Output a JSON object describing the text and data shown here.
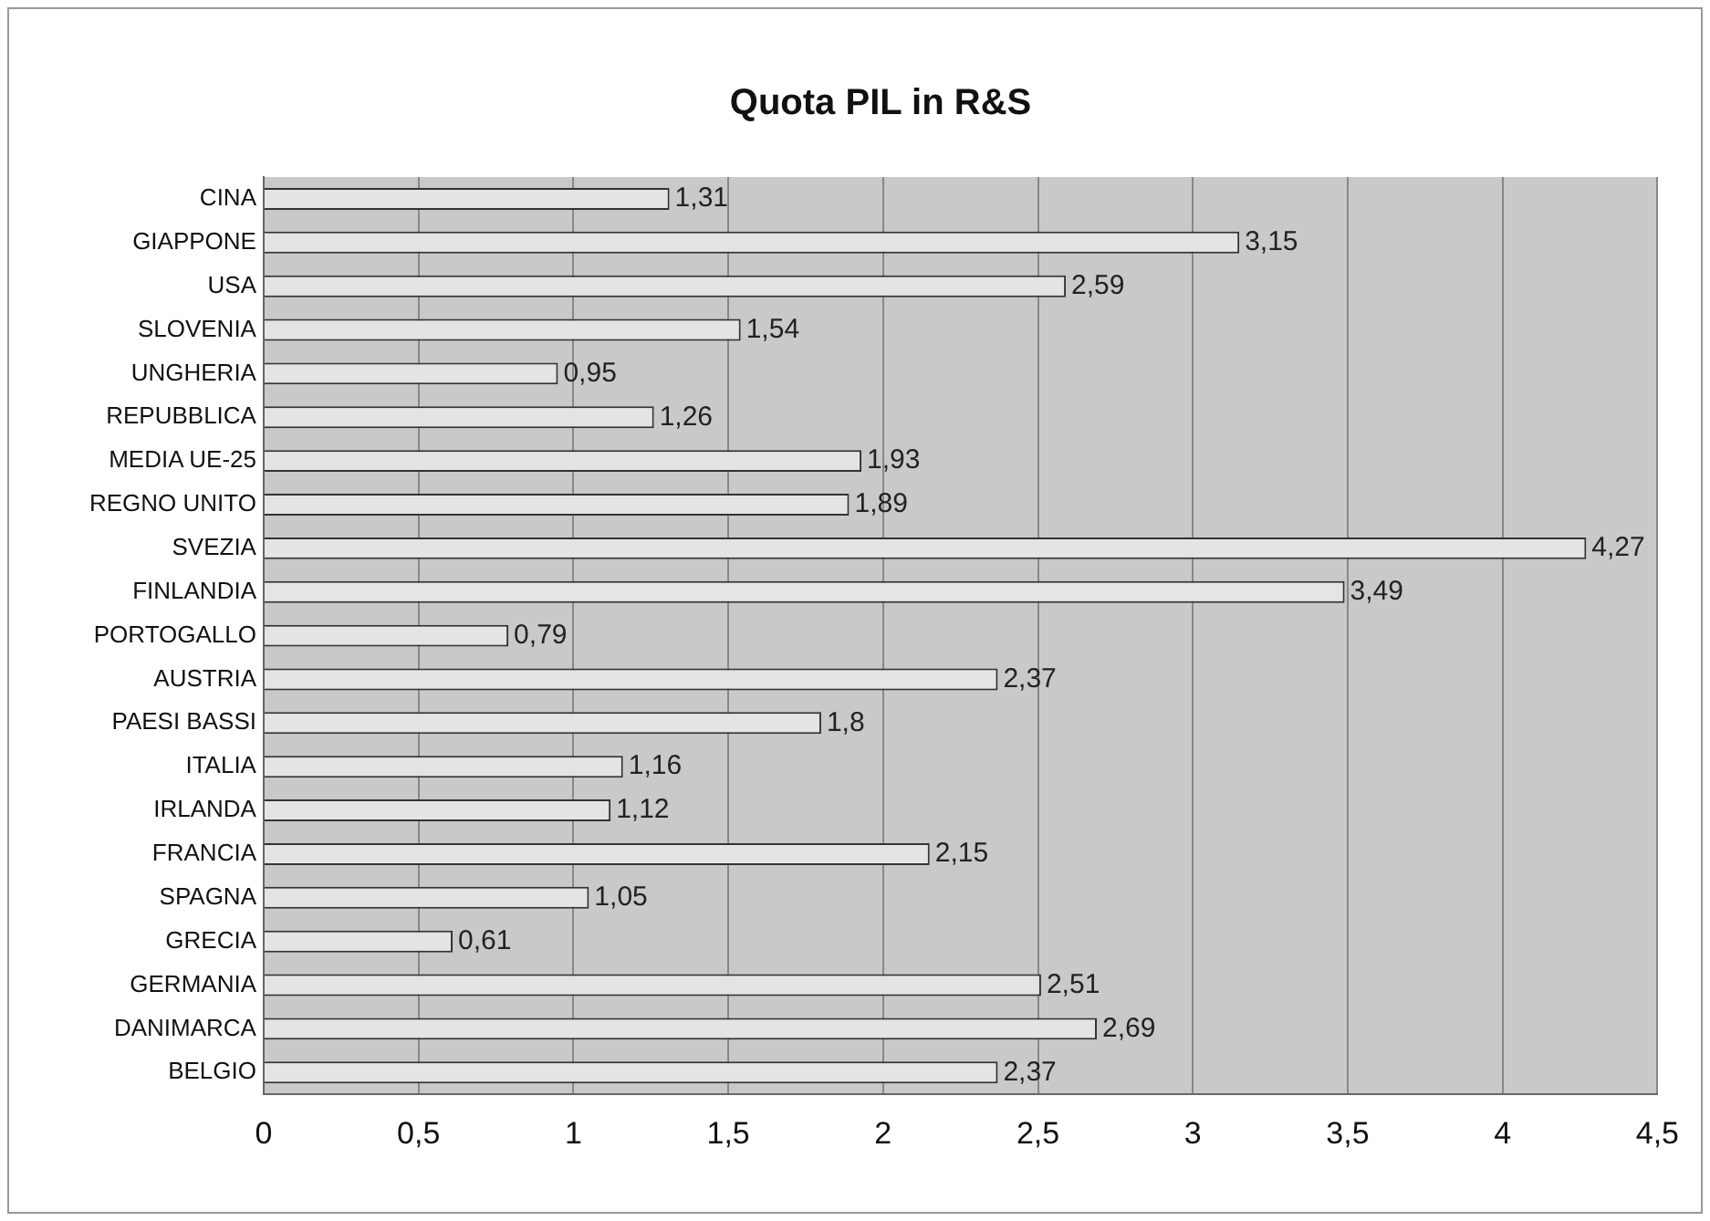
{
  "chart_data": {
    "type": "bar",
    "orientation": "horizontal",
    "title": "Quota PIL in R&S",
    "categories": [
      "CINA",
      "GIAPPONE",
      "USA",
      "SLOVENIA",
      "UNGHERIA",
      "REPUBBLICA",
      "MEDIA UE-25",
      "REGNO UNITO",
      "SVEZIA",
      "FINLANDIA",
      "PORTOGALLO",
      "AUSTRIA",
      "PAESI BASSI",
      "ITALIA",
      "IRLANDA",
      "FRANCIA",
      "SPAGNA",
      "GRECIA",
      "GERMANIA",
      "DANIMARCA",
      "BELGIO"
    ],
    "values": [
      1.31,
      3.15,
      2.59,
      1.54,
      0.95,
      1.26,
      1.93,
      1.89,
      4.27,
      3.49,
      0.79,
      2.37,
      1.8,
      1.16,
      1.12,
      2.15,
      1.05,
      0.61,
      2.51,
      2.69,
      2.37
    ],
    "value_labels": [
      "1,31",
      "3,15",
      "2,59",
      "1,54",
      "0,95",
      "1,26",
      "1,93",
      "1,89",
      "4,27",
      "3,49",
      "0,79",
      "2,37",
      "1,8",
      "1,16",
      "1,12",
      "2,15",
      "1,05",
      "0,61",
      "2,51",
      "2,69",
      "2,37"
    ],
    "color": "#e4e4e4",
    "xlim": [
      0,
      4.5
    ],
    "xticks": [
      0,
      {
        "value": 0.5,
        "label": "0,5"
      },
      1,
      {
        "value": 1.5,
        "label": "1,5"
      },
      2,
      {
        "value": 2.5,
        "label": "2,5"
      },
      3,
      {
        "value": 3.5,
        "label": "3,5"
      },
      4,
      {
        "value": 4.5,
        "label": "4,5"
      }
    ],
    "grid": "x",
    "legend": false
  }
}
